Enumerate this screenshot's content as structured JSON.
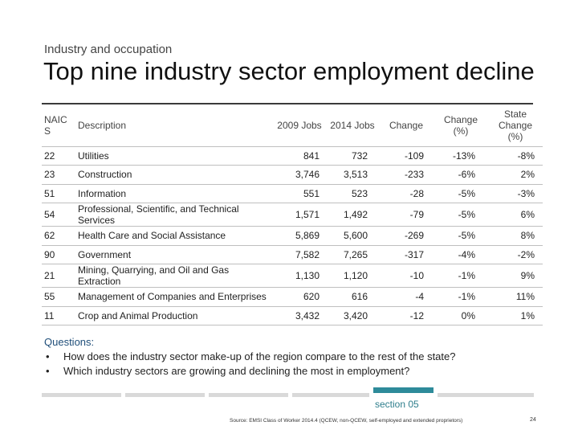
{
  "header": {
    "kicker": "Industry and occupation",
    "title": "Top nine industry sector employment decline"
  },
  "table": {
    "columns": {
      "naics": "NAICS",
      "description": "Description",
      "jobs_2009": "2009 Jobs",
      "jobs_2014": "2014 Jobs",
      "change": "Change",
      "change_pct": "Change (%)",
      "state_change_pct": "State Change (%)"
    },
    "rows": [
      {
        "naics": "22",
        "description": "Utilities",
        "jobs_2009": "841",
        "jobs_2014": "732",
        "change": "-109",
        "change_pct": "-13%",
        "state_change_pct": "-8%"
      },
      {
        "naics": "23",
        "description": "Construction",
        "jobs_2009": "3,746",
        "jobs_2014": "3,513",
        "change": "-233",
        "change_pct": "-6%",
        "state_change_pct": "2%"
      },
      {
        "naics": "51",
        "description": "Information",
        "jobs_2009": "551",
        "jobs_2014": "523",
        "change": "-28",
        "change_pct": "-5%",
        "state_change_pct": "-3%"
      },
      {
        "naics": "54",
        "description": "Professional, Scientific, and Technical Services",
        "jobs_2009": "1,571",
        "jobs_2014": "1,492",
        "change": "-79",
        "change_pct": "-5%",
        "state_change_pct": "6%"
      },
      {
        "naics": "62",
        "description": "Health Care and Social Assistance",
        "jobs_2009": "5,869",
        "jobs_2014": "5,600",
        "change": "-269",
        "change_pct": "-5%",
        "state_change_pct": "8%"
      },
      {
        "naics": "90",
        "description": "Government",
        "jobs_2009": "7,582",
        "jobs_2014": "7,265",
        "change": "-317",
        "change_pct": "-4%",
        "state_change_pct": "-2%"
      },
      {
        "naics": "21",
        "description": "Mining, Quarrying, and Oil and Gas Extraction",
        "jobs_2009": "1,130",
        "jobs_2014": "1,120",
        "change": "-10",
        "change_pct": "-1%",
        "state_change_pct": "9%"
      },
      {
        "naics": "55",
        "description": "Management of Companies and Enterprises",
        "jobs_2009": "620",
        "jobs_2014": "616",
        "change": "-4",
        "change_pct": "-1%",
        "state_change_pct": "11%"
      },
      {
        "naics": "11",
        "description": "Crop and Animal Production",
        "jobs_2009": "3,432",
        "jobs_2014": "3,420",
        "change": "-12",
        "change_pct": "0%",
        "state_change_pct": "1%"
      }
    ]
  },
  "questions": {
    "heading": "Questions:",
    "bullet": "•",
    "items": [
      "How does the industry sector make-up of the region compare to the rest of the state?",
      "Which industry sectors are growing and declining the most in employment?"
    ]
  },
  "footer": {
    "section": "section 05",
    "source": "Source: EMSI Class of Worker 2014.4 (QCEW, non-QCEW, self-employed and extended proprietors)",
    "page": "24",
    "accent_color": "#2e8b9a"
  }
}
